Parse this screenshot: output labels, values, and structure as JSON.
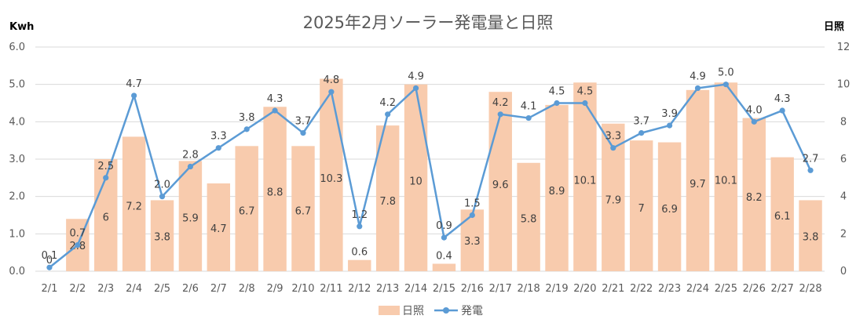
{
  "chart_data": {
    "type": "bar",
    "title": "2025年2月ソーラー発電量と日照",
    "ylabel": "Kwh",
    "y2label": "日照",
    "ylim": [
      0,
      6
    ],
    "y2lim": [
      0,
      12
    ],
    "yticks": [
      "0.0",
      "1.0",
      "2.0",
      "3.0",
      "4.0",
      "5.0",
      "6.0"
    ],
    "y2ticks": [
      "0",
      "2",
      "4",
      "6",
      "8",
      "10",
      "12"
    ],
    "grid": true,
    "legend_position": "bottom",
    "categories": [
      "2/1",
      "2/2",
      "2/3",
      "2/4",
      "2/5",
      "2/6",
      "2/7",
      "2/8",
      "2/9",
      "2/10",
      "2/11",
      "2/12",
      "2/13",
      "2/14",
      "2/15",
      "2/16",
      "2/17",
      "2/18",
      "2/19",
      "2/20",
      "2/21",
      "2/22",
      "2/23",
      "2/24",
      "2/25",
      "2/26",
      "2/27",
      "2/28"
    ],
    "series": [
      {
        "name": "日照",
        "type": "bar",
        "axis": "right",
        "color": "#f8cbad",
        "values": [
          0,
          2.8,
          6,
          7.2,
          3.8,
          5.9,
          4.7,
          6.7,
          8.8,
          6.7,
          10.3,
          0.6,
          7.8,
          10,
          0.4,
          3.3,
          9.6,
          5.8,
          8.9,
          10.1,
          7.9,
          7,
          6.9,
          9.7,
          10.1,
          8.2,
          6.1,
          3.8
        ],
        "labels": [
          "0",
          "2.8",
          "6",
          "7.2",
          "3.8",
          "5.9",
          "4.7",
          "6.7",
          "8.8",
          "6.7",
          "10.3",
          "0.6",
          "7.8",
          "10",
          "0.4",
          "3.3",
          "9.6",
          "5.8",
          "8.9",
          "10.1",
          "7.9",
          "7",
          "6.9",
          "9.7",
          "10.1",
          "8.2",
          "6.1",
          "3.8"
        ]
      },
      {
        "name": "発電",
        "type": "line",
        "axis": "left",
        "color": "#5b9bd5",
        "values": [
          0.1,
          0.7,
          2.5,
          4.7,
          2.0,
          2.8,
          3.3,
          3.8,
          4.3,
          3.7,
          4.8,
          1.2,
          4.2,
          4.9,
          0.9,
          1.5,
          4.2,
          4.1,
          4.5,
          4.5,
          3.3,
          3.7,
          3.9,
          4.9,
          5.0,
          4.0,
          4.3,
          2.7
        ],
        "labels": [
          "0.1",
          "0.7",
          "2.5",
          "4.7",
          "2.0",
          "2.8",
          "3.3",
          "3.8",
          "4.3",
          "3.7",
          "4.8",
          "1.2",
          "4.2",
          "4.9",
          "0.9",
          "1.5",
          "4.2",
          "4.1",
          "4.5",
          "4.5",
          "3.3",
          "3.7",
          "3.9",
          "4.9",
          "5.0",
          "4.0",
          "4.3",
          "2.7"
        ]
      }
    ]
  },
  "legend": {
    "bar_label": "日照",
    "line_label": "発電"
  },
  "colors": {
    "bar": "#f8cbad",
    "line": "#5b9bd5",
    "grid": "#d9d9d9"
  }
}
